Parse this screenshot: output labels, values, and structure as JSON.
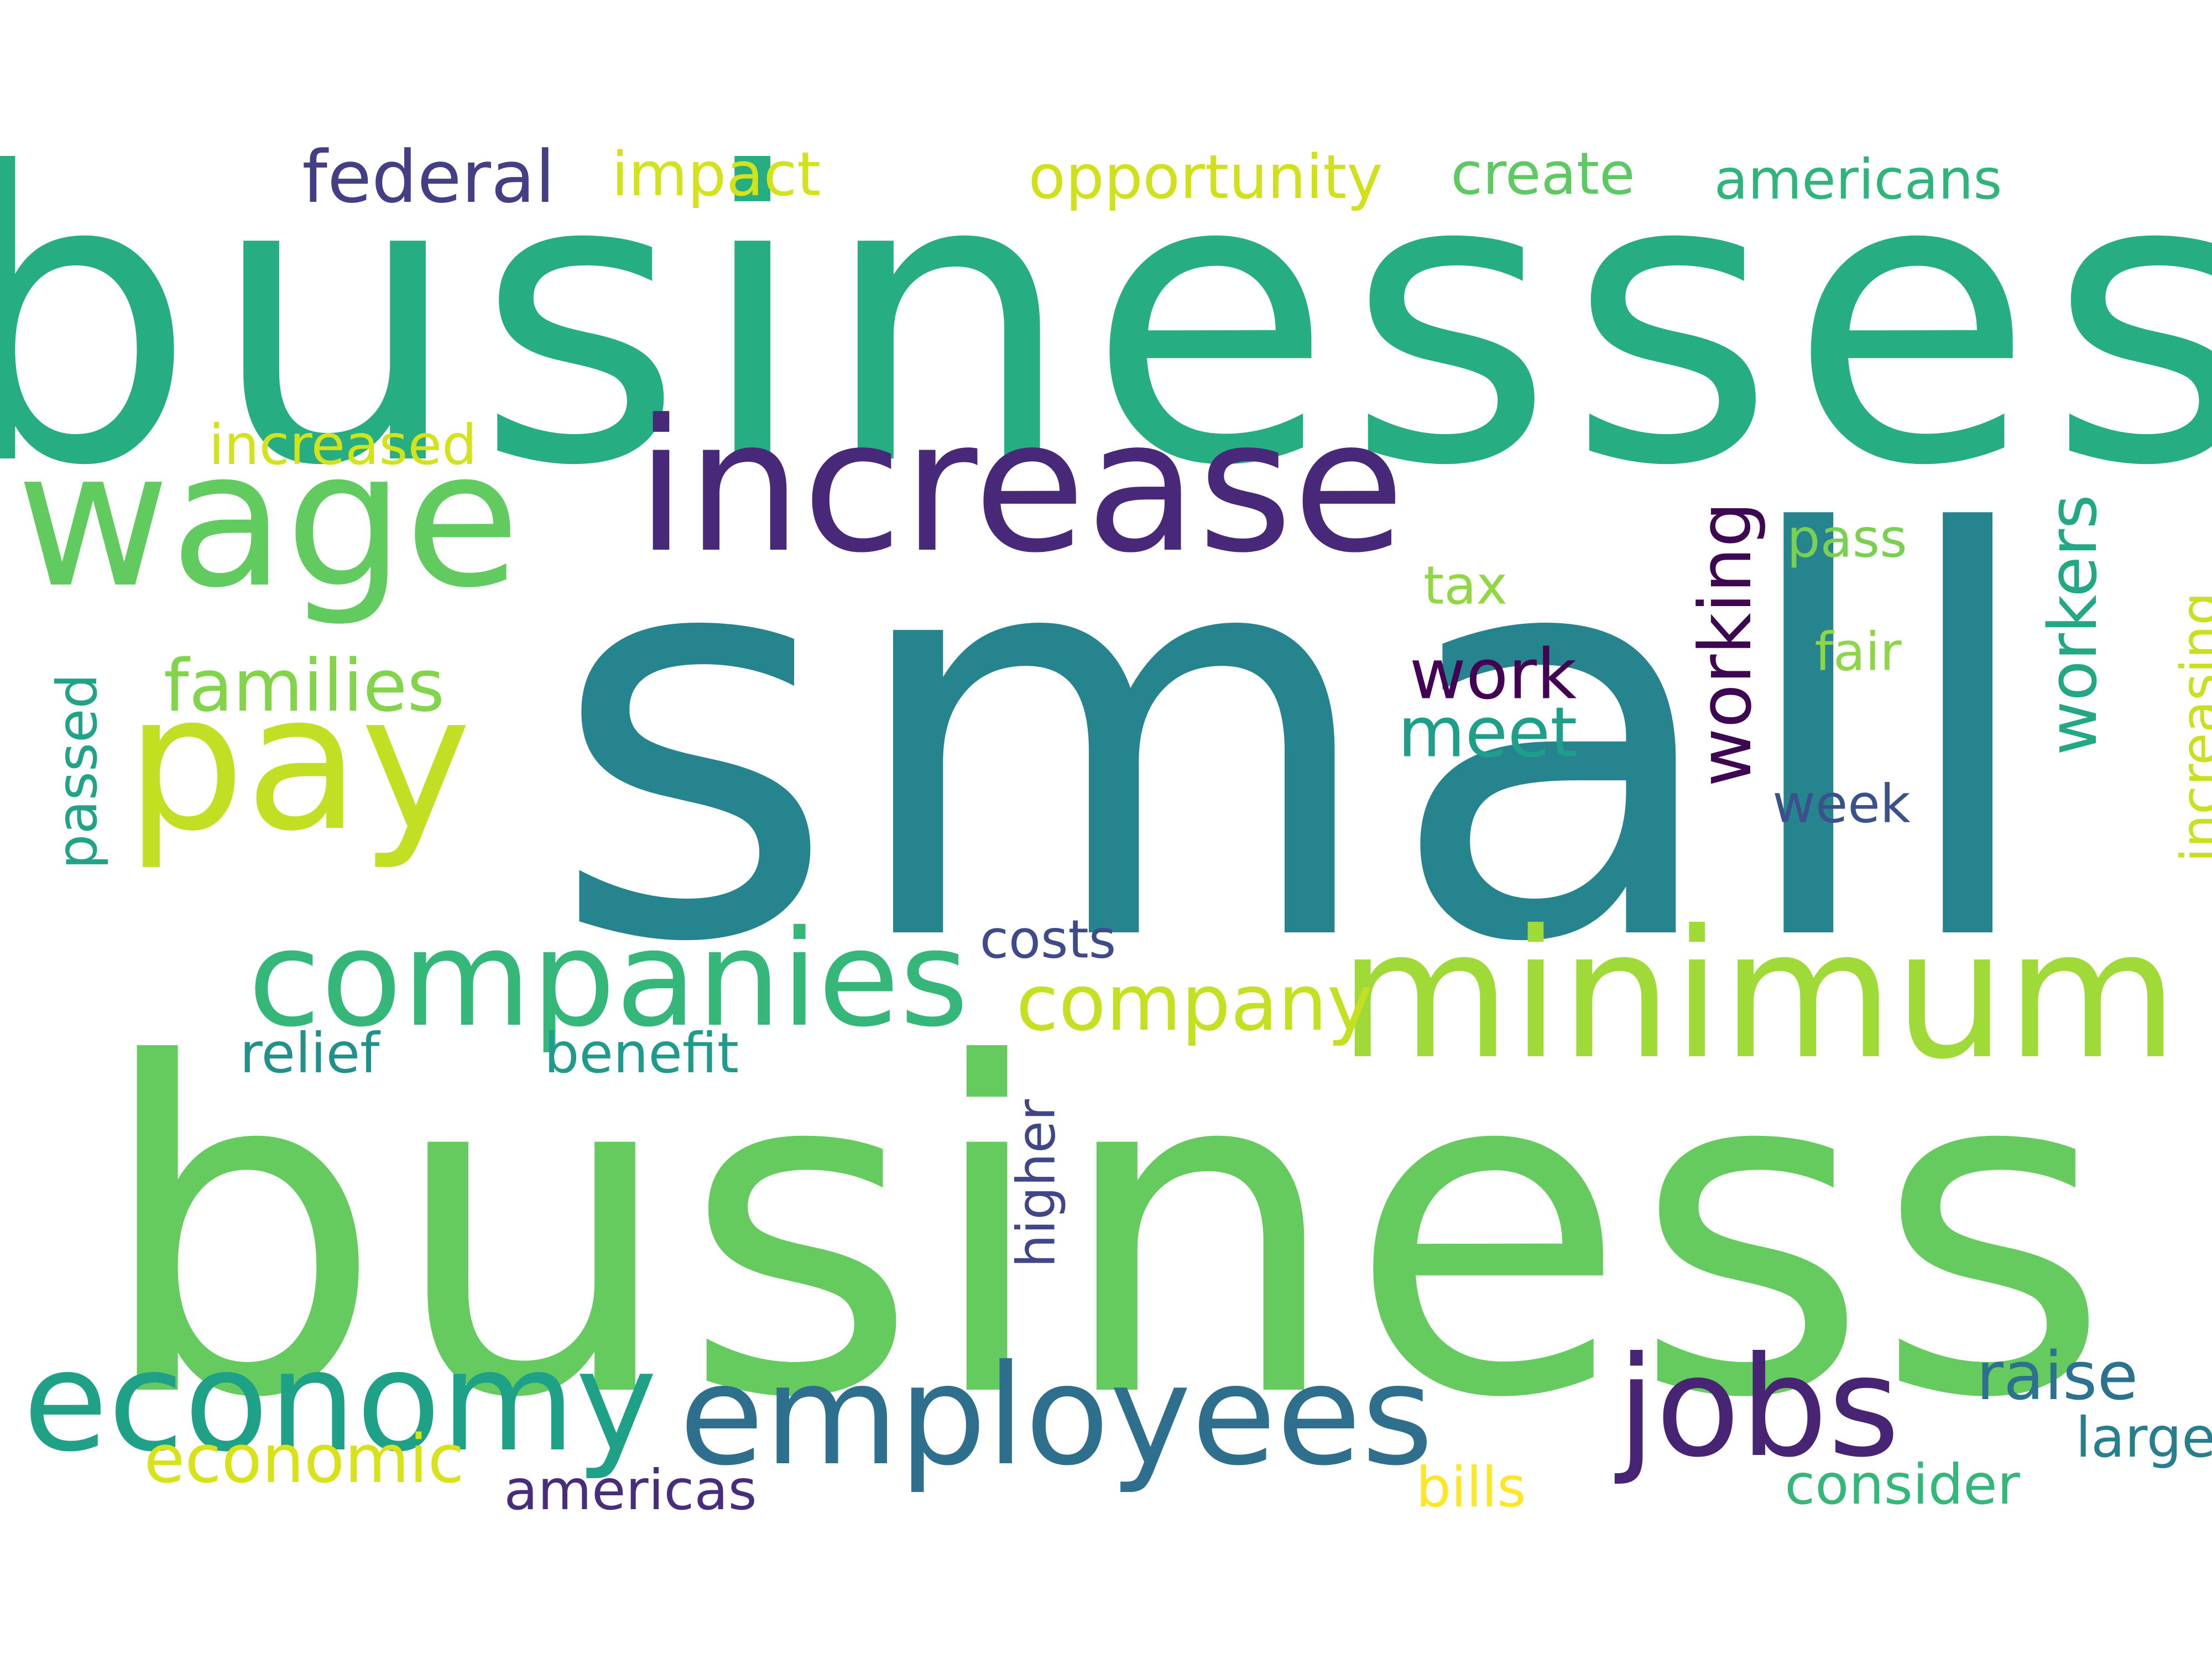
{
  "words": {
    "businesses": {
      "text": "businesses",
      "color": "#26ad81"
    },
    "small": {
      "text": "small",
      "color": "#26848e"
    },
    "business": {
      "text": "business",
      "color": "#65cb5e"
    },
    "wage": {
      "text": "wage",
      "color": "#62cb5f"
    },
    "increase": {
      "text": "increase",
      "color": "#482878"
    },
    "pay": {
      "text": "pay",
      "color": "#c2df23"
    },
    "minimum": {
      "text": "minimum",
      "color": "#a0da39"
    },
    "companies": {
      "text": "companies",
      "color": "#35b779"
    },
    "economy": {
      "text": "economy",
      "color": "#1fa187"
    },
    "employees": {
      "text": "employees",
      "color": "#2e6f8e"
    },
    "jobs": {
      "text": "jobs",
      "color": "#482475"
    },
    "federal": {
      "text": "federal",
      "color": "#433e85"
    },
    "impact": {
      "text": "impact",
      "color": "#d2e21b"
    },
    "opportunity": {
      "text": "opportunity",
      "color": "#d0e11c"
    },
    "create": {
      "text": "create",
      "color": "#5ec962"
    },
    "americans": {
      "text": "americans",
      "color": "#2fb47c"
    },
    "increased": {
      "text": "increased",
      "color": "#d2e21b"
    },
    "families": {
      "text": "families",
      "color": "#84d44b"
    },
    "work": {
      "text": "work",
      "color": "#440154"
    },
    "meet": {
      "text": "meet",
      "color": "#1f9e89"
    },
    "tax": {
      "text": "tax",
      "color": "#90d743"
    },
    "pass": {
      "text": "pass",
      "color": "#7ad151"
    },
    "fair": {
      "text": "fair",
      "color": "#8ed645"
    },
    "week": {
      "text": "week",
      "color": "#3b518b"
    },
    "working": {
      "text": "working",
      "color": "#3e0751"
    },
    "workers": {
      "text": "workers",
      "color": "#22a884"
    },
    "increasing": {
      "text": "increasing",
      "color": "#c8e020"
    },
    "passed": {
      "text": "passed",
      "color": "#20a386"
    },
    "higher": {
      "text": "higher",
      "color": "#404688"
    },
    "costs": {
      "text": "costs",
      "color": "#3e4a89"
    },
    "company": {
      "text": "company",
      "color": "#c5e021"
    },
    "relief": {
      "text": "relief",
      "color": "#21918c"
    },
    "benefit": {
      "text": "benefit",
      "color": "#1e9b8a"
    },
    "raise": {
      "text": "raise",
      "color": "#2c728e"
    },
    "large": {
      "text": "large",
      "color": "#277f8e"
    },
    "economic": {
      "text": "economic",
      "color": "#d8e219"
    },
    "americas": {
      "text": "americas",
      "color": "#472d7b"
    },
    "bills": {
      "text": "bills",
      "color": "#fde725"
    },
    "consider": {
      "text": "consider",
      "color": "#35b779"
    }
  }
}
